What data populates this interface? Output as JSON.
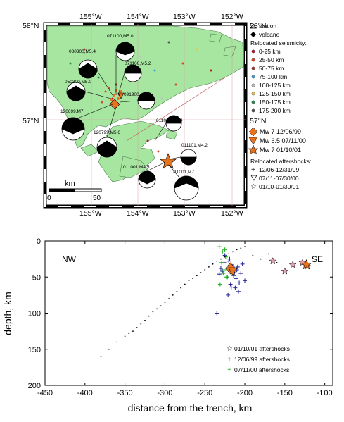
{
  "map": {
    "lat_labels_left": [
      "58°N",
      "57°N"
    ],
    "lat_labels_right": [
      "58°N",
      "57°N"
    ],
    "lon_labels_top": [
      "155°W",
      "154°W",
      "153°W",
      "152°W"
    ],
    "lon_labels_bottom": [
      "155°W",
      "154°W",
      "153°W",
      "152°W"
    ],
    "scale": {
      "unit": "km",
      "ticks": [
        "0",
        "50"
      ]
    },
    "event_labels": [
      "071100,M5.0",
      "030300,M5.4",
      "071100,M5.2",
      "050300,M5.0",
      "091900,M5.0",
      "120699,M7",
      "120799,M5.6",
      "011001,M4.4",
      "011101,M4.2",
      "011001,M4.5",
      "011001,M7"
    ],
    "legend": {
      "station": "station",
      "volcano": "volcano",
      "relocated_title": "Relocated seismicity:",
      "depth_bins": [
        {
          "label": "0-25 km",
          "color": "#c8102e"
        },
        {
          "label": "25-50 km",
          "color": "#d84a2a"
        },
        {
          "label": "50-75 km",
          "color": "#b5302e"
        },
        {
          "label": "75-100 km",
          "color": "#3aa6dd"
        },
        {
          "label": "100-125 km",
          "color": "#c0c0c0"
        },
        {
          "label": "125-150 km",
          "color": "#f2c14e"
        },
        {
          "label": "150-175 km",
          "color": "#2e8b57"
        },
        {
          "label": "175-200 km",
          "color": "#555555"
        }
      ],
      "mainshocks": [
        {
          "label": "Mw 7 12/06/99",
          "color": "#e8731e"
        },
        {
          "label": "Mw 6.5 07/11/00",
          "color": "#e8731e"
        },
        {
          "label": "Mw 7 01/10/01",
          "color": "#e8731e"
        }
      ],
      "aftershocks_title": "Relocated aftershocks:",
      "aftershocks": [
        "12/06-12/31/99",
        "07/11-07/30/00",
        "01/10-01/30/01"
      ]
    },
    "colors": {
      "land": "#a6e6a0",
      "ocean": "#ffffff",
      "mainshock": "#e8731e"
    }
  },
  "chart_data": {
    "type": "scatter",
    "xlabel": "distance from the trench, km",
    "ylabel": "depth, km",
    "xlim": [
      -450,
      -90
    ],
    "ylim": [
      200,
      0
    ],
    "xticks": [
      -450,
      -400,
      -350,
      -300,
      -250,
      -200,
      -150,
      -100
    ],
    "yticks": [
      0,
      50,
      100,
      150,
      200
    ],
    "corner_labels": {
      "left": "NW",
      "right": "SE"
    },
    "legend_placement": "bottom-right",
    "series": [
      {
        "name": "01/10/01 aftershocks",
        "marker": "star",
        "color": "#e8a0b0",
        "x": [
          -128,
          -140,
          -150,
          -165,
          -122
        ],
        "y": [
          30,
          33,
          42,
          28,
          35
        ]
      },
      {
        "name": "12/06/99 aftershocks",
        "marker": "plus",
        "color": "#2b2b9a",
        "x": [
          -225,
          -220,
          -215,
          -210,
          -205,
          -200,
          -218,
          -212,
          -208,
          -222,
          -228,
          -230,
          -203,
          -214,
          -219,
          -211,
          -207,
          -226,
          -232,
          -217,
          -213,
          -209,
          -221,
          -235
        ],
        "y": [
          20,
          28,
          35,
          40,
          45,
          55,
          60,
          65,
          70,
          50,
          42,
          38,
          32,
          48,
          25,
          52,
          58,
          30,
          46,
          64,
          44,
          36,
          75,
          100
        ]
      },
      {
        "name": "07/11/00 aftershocks",
        "marker": "plus",
        "color": "#1db31d",
        "x": [
          -232,
          -228,
          -224,
          -229,
          -226,
          -223,
          -231,
          -227,
          -225
        ],
        "y": [
          8,
          15,
          22,
          30,
          40,
          50,
          60,
          45,
          12
        ]
      },
      {
        "name": "",
        "marker": "dot",
        "color": "#000000",
        "x": [
          -380,
          -370,
          -360,
          -350,
          -345,
          -340,
          -335,
          -330,
          -325,
          -320,
          -315,
          -310,
          -305,
          -300,
          -295,
          -290,
          -285,
          -280,
          -275,
          -270,
          -265,
          -260,
          -255,
          -250,
          -245,
          -240,
          -235,
          -230,
          -225,
          -220,
          -215,
          -210,
          -205,
          -200,
          -190,
          -180,
          -170,
          -160
        ],
        "y": [
          160,
          150,
          140,
          132,
          128,
          125,
          120,
          115,
          110,
          104,
          98,
          94,
          90,
          85,
          80,
          75,
          70,
          65,
          60,
          55,
          52,
          48,
          44,
          40,
          36,
          32,
          28,
          25,
          22,
          18,
          15,
          12,
          10,
          8,
          20,
          25,
          18,
          30
        ]
      }
    ],
    "mainshocks": [
      {
        "label": "Mw 7 12/06/99",
        "marker": "diamond",
        "color": "#e8731e",
        "x": -218,
        "y": 38
      },
      {
        "label": "Mw 6.5 07/11/00",
        "marker": "triangle",
        "color": "#e8731e",
        "x": -215,
        "y": 42
      },
      {
        "label": "Mw 7 01/10/01",
        "marker": "star",
        "color": "#e8731e",
        "x": -123,
        "y": 33
      }
    ]
  }
}
